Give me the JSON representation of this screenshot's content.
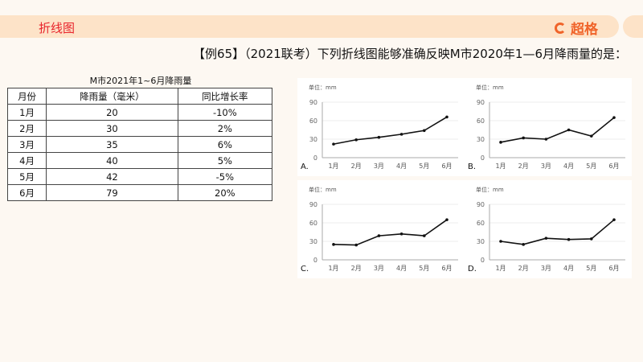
{
  "header": {
    "section_title": "折线图",
    "logo_text": "超格"
  },
  "question": "【例65】（2021联考）下列折线图能够准确反映M市2020年1—6月降雨量的是：",
  "table": {
    "title": "M市2021年1~6月降雨量",
    "headers": [
      "月份",
      "降雨量（毫米）",
      "同比增长率"
    ],
    "rows": [
      [
        "1月",
        "20",
        "-10%"
      ],
      [
        "2月",
        "30",
        "2%"
      ],
      [
        "3月",
        "35",
        "6%"
      ],
      [
        "4月",
        "40",
        "5%"
      ],
      [
        "5月",
        "42",
        "-5%"
      ],
      [
        "6月",
        "79",
        "20%"
      ]
    ]
  },
  "chart_data": [
    {
      "type": "line",
      "option": "A.",
      "unit": "单位：mm",
      "categories": [
        "1月",
        "2月",
        "3月",
        "4月",
        "5月",
        "6月"
      ],
      "yticks": [
        "0",
        "30",
        "60",
        "90"
      ],
      "ylim": [
        0,
        90
      ],
      "values": [
        22,
        29,
        33,
        38,
        44,
        66
      ],
      "grid": true
    },
    {
      "type": "line",
      "option": "B.",
      "unit": "单位：mm",
      "categories": [
        "1月",
        "2月",
        "3月",
        "4月",
        "5月",
        "6月"
      ],
      "yticks": [
        "0",
        "30",
        "60",
        "90"
      ],
      "ylim": [
        0,
        90
      ],
      "values": [
        25,
        32,
        30,
        45,
        35,
        65
      ],
      "grid": true
    },
    {
      "type": "line",
      "option": "C.",
      "unit": "单位：mm",
      "categories": [
        "1月",
        "2月",
        "3月",
        "4月",
        "5月",
        "6月"
      ],
      "yticks": [
        "0",
        "30",
        "60",
        "90"
      ],
      "ylim": [
        0,
        90
      ],
      "values": [
        25,
        24,
        39,
        42,
        39,
        65
      ],
      "grid": true
    },
    {
      "type": "line",
      "option": "D.",
      "unit": "单位：mm",
      "categories": [
        "1月",
        "2月",
        "3月",
        "4月",
        "5月",
        "6月"
      ],
      "yticks": [
        "0",
        "30",
        "60",
        "90"
      ],
      "ylim": [
        0,
        90
      ],
      "values": [
        30,
        25,
        35,
        33,
        34,
        65
      ],
      "grid": true
    }
  ],
  "colors": {
    "banner": "#fde3c8",
    "section_title": "#e8242b",
    "logo": "#f0642a",
    "line": "#111111"
  }
}
